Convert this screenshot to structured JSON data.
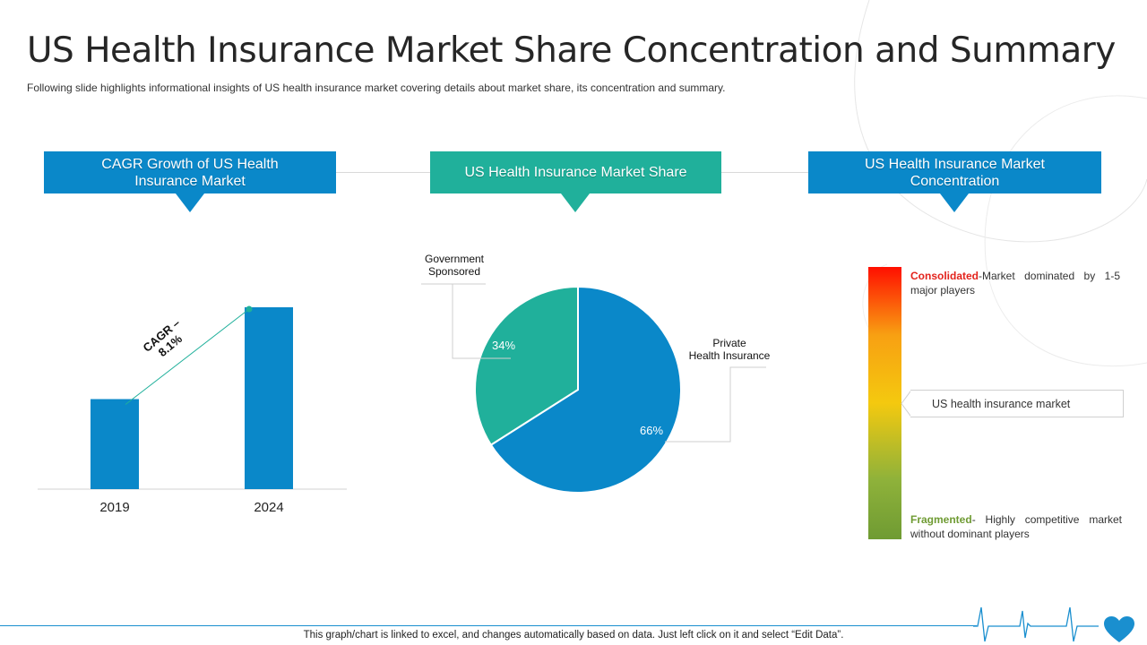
{
  "page": {
    "title": "US Health Insurance Market Share Concentration and Summary",
    "subtitle": "Following slide highlights informational  insights of US health insurance market covering  details about market share, its concentration and summary.",
    "footer": "This graph/chart is linked to excel,  and changes automatically based on data. Just left click on it and select “Edit Data”."
  },
  "headers": {
    "cagr": "CAGR Growth  of US Health Insurance  Market",
    "share": "US Health Insurance  Market Share",
    "concentration": "US Health Insurance  Market Concentration"
  },
  "colors": {
    "blue": "#0a88c9",
    "teal": "#20b09b",
    "consolidated": "#e3231c",
    "fragmented": "#6f9b33"
  },
  "cagr_annotation": "CAGR –\n8.1%",
  "pie_labels": {
    "government": "Government\nSponsored",
    "private": "Private\nHealth Insurance"
  },
  "concentration": {
    "consolidated_label": "Consolidated",
    "consolidated_text": "-Market  dominated  by 1-5 major players",
    "market_marker": "US health insurance market",
    "fragmented_label": "Fragmented",
    "fragmented_text": "- Highly competitive market without dominant players",
    "gradient": [
      "#ff0f00",
      "#f8a012",
      "#f4c90f",
      "#8fb23a",
      "#6f9b33"
    ]
  },
  "chart_data": [
    {
      "type": "bar",
      "categories": [
        "2019",
        "2024"
      ],
      "values": [
        1.0,
        2.02
      ],
      "ylim": [
        0,
        2.02
      ],
      "title": "",
      "xlabel": "",
      "ylabel": "",
      "grid": false
    },
    {
      "type": "pie",
      "slices": [
        {
          "name": "Private Health Insurance",
          "value": 66,
          "label": "66%",
          "color": "#0a88c9"
        },
        {
          "name": "Government Sponsored",
          "value": 34,
          "label": "34%",
          "color": "#20b09b"
        }
      ],
      "legend": "none"
    }
  ]
}
